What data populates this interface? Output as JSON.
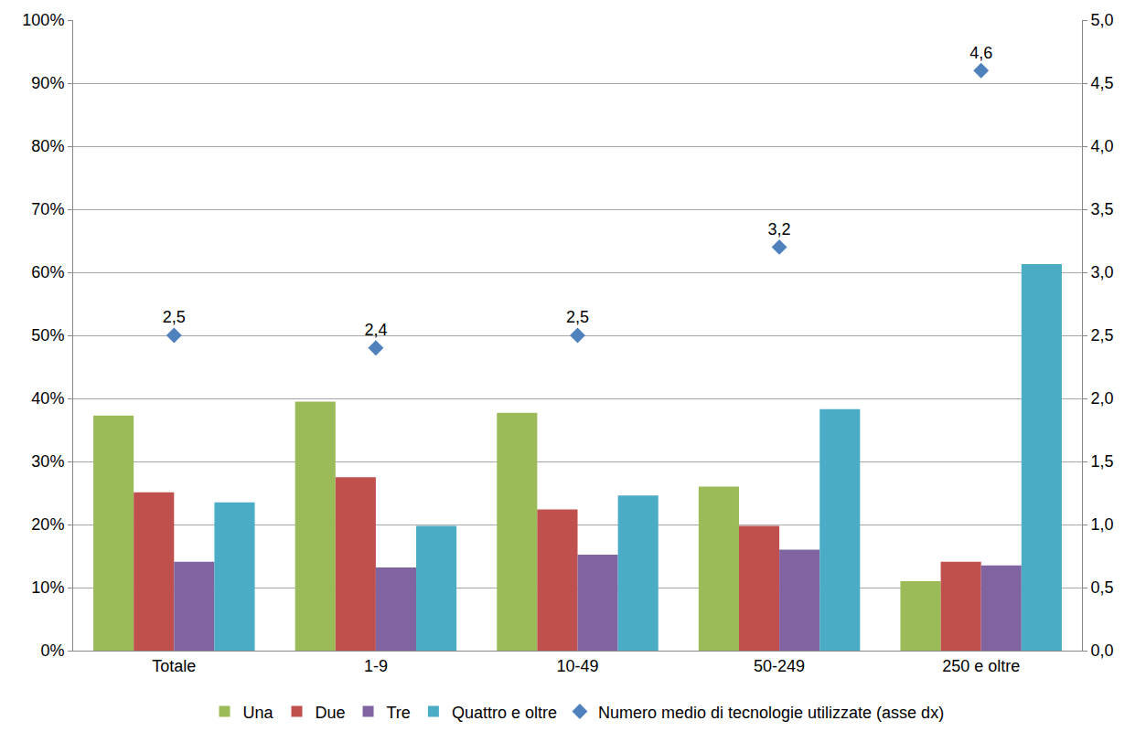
{
  "chart_data": {
    "type": "bar",
    "categories": [
      "Totale",
      "1-9",
      "10-49",
      "50-249",
      "250 e oltre"
    ],
    "series": [
      {
        "name": "Una",
        "color": "#9BBB59",
        "values": [
          37.3,
          39.5,
          37.7,
          26.0,
          11.0
        ]
      },
      {
        "name": "Due",
        "color": "#C0504D",
        "values": [
          25.1,
          27.5,
          22.4,
          19.8,
          14.1
        ]
      },
      {
        "name": "Tre",
        "color": "#8064A2",
        "values": [
          14.1,
          13.2,
          15.2,
          16.0,
          13.5
        ]
      },
      {
        "name": "Quattro e oltre",
        "color": "#4BACC6",
        "values": [
          23.5,
          19.8,
          24.6,
          38.3,
          61.3
        ]
      },
      {
        "name": "Numero medio di tecnologie utilizzate (asse dx)",
        "color": "#4F81BD",
        "type": "scatter",
        "marker": "diamond",
        "axis": "y2",
        "data_labels": true,
        "values": [
          2.5,
          2.4,
          2.5,
          3.2,
          4.6
        ],
        "value_labels": [
          "2,5",
          "2,4",
          "2,5",
          "3,2",
          "4,6"
        ]
      }
    ],
    "ylim": [
      0,
      100
    ],
    "yticks": [
      {
        "value": 0,
        "label": "0%"
      },
      {
        "value": 10,
        "label": "10%"
      },
      {
        "value": 20,
        "label": "20%"
      },
      {
        "value": 30,
        "label": "30%"
      },
      {
        "value": 40,
        "label": "40%"
      },
      {
        "value": 50,
        "label": "50%"
      },
      {
        "value": 60,
        "label": "60%"
      },
      {
        "value": 70,
        "label": "70%"
      },
      {
        "value": 80,
        "label": "80%"
      },
      {
        "value": 90,
        "label": "90%"
      },
      {
        "value": 100,
        "label": "100%"
      }
    ],
    "y2lim": [
      0,
      5
    ],
    "y2ticks": [
      {
        "value": 0,
        "label": "0,0"
      },
      {
        "value": 0.5,
        "label": "0,5"
      },
      {
        "value": 1,
        "label": "1,0"
      },
      {
        "value": 1.5,
        "label": "1,5"
      },
      {
        "value": 2,
        "label": "2,0"
      },
      {
        "value": 2.5,
        "label": "2,5"
      },
      {
        "value": 3,
        "label": "3,0"
      },
      {
        "value": 3.5,
        "label": "3,5"
      },
      {
        "value": 4,
        "label": "4,0"
      },
      {
        "value": 4.5,
        "label": "4,5"
      },
      {
        "value": 5,
        "label": "5,0"
      }
    ],
    "grid": true,
    "legend": "bottom"
  }
}
